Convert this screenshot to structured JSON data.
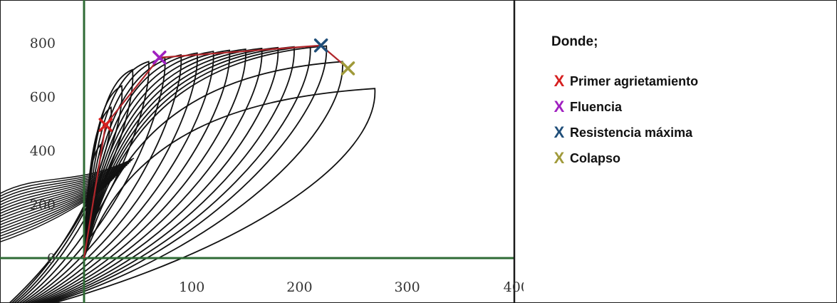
{
  "chart_data": {
    "type": "line",
    "title": "",
    "xlabel": "",
    "ylabel": "",
    "xlim": [
      -76,
      400
    ],
    "ylim": [
      -200,
      870
    ],
    "x_ticks": [
      "100",
      "200",
      "300",
      "400"
    ],
    "y_ticks": [
      "0",
      "200",
      "400",
      "600",
      "800"
    ],
    "grid": false,
    "legend_position": "right",
    "envelope": {
      "x": [
        0,
        20,
        70,
        220,
        245
      ],
      "y": [
        0,
        495,
        745,
        790,
        705
      ]
    },
    "points": [
      {
        "key": "primer",
        "x": 20,
        "y": 495,
        "color": "#d62020"
      },
      {
        "key": "fluencia",
        "x": 70,
        "y": 745,
        "color": "#a020c0"
      },
      {
        "key": "resistencia",
        "x": 220,
        "y": 790,
        "color": "#1f4e79"
      },
      {
        "key": "colapso",
        "x": 245,
        "y": 705,
        "color": "#a09a3a"
      }
    ],
    "hysteresis_peaks": [
      {
        "x": 15,
        "y": 420
      },
      {
        "x": 25,
        "y": 560
      },
      {
        "x": 35,
        "y": 640
      },
      {
        "x": 45,
        "y": 700
      },
      {
        "x": 60,
        "y": 730
      },
      {
        "x": 75,
        "y": 745
      },
      {
        "x": 90,
        "y": 755
      },
      {
        "x": 105,
        "y": 762
      },
      {
        "x": 120,
        "y": 768
      },
      {
        "x": 135,
        "y": 772
      },
      {
        "x": 150,
        "y": 776
      },
      {
        "x": 165,
        "y": 779
      },
      {
        "x": 180,
        "y": 782
      },
      {
        "x": 195,
        "y": 785
      },
      {
        "x": 210,
        "y": 787
      },
      {
        "x": 225,
        "y": 788
      },
      {
        "x": 240,
        "y": 730
      },
      {
        "x": 270,
        "y": 630
      }
    ]
  },
  "legend": {
    "title": "Donde;",
    "items": [
      {
        "mark": "X",
        "label": "Primer agrietamiento",
        "color": "#d62020"
      },
      {
        "mark": "X",
        "label": "Fluencia",
        "color": "#a020c0"
      },
      {
        "mark": "X",
        "label": "Resistencia máxima",
        "color": "#1f4e79"
      },
      {
        "mark": "X",
        "label": "Colapso",
        "color": "#a09a3a"
      }
    ]
  }
}
